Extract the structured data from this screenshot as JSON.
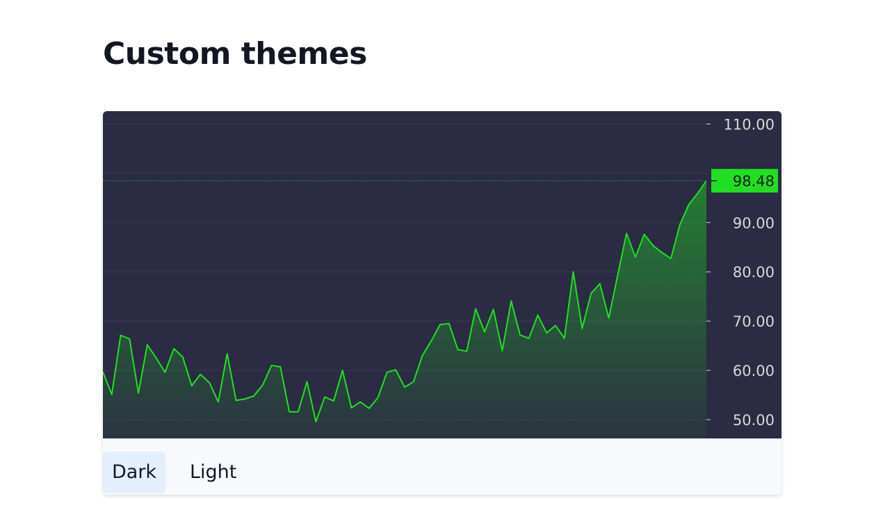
{
  "page": {
    "title": "Custom themes"
  },
  "tabs": [
    {
      "label": "Dark",
      "active": true
    },
    {
      "label": "Light",
      "active": false
    }
  ],
  "colors": {
    "background": "#2b2b43",
    "line": "#1fe020",
    "area_top": "rgba(31,224,32,0.45)",
    "area_bottom": "rgba(31,224,32,0.05)",
    "grid": "#363c4e",
    "axis_text": "#d9d9d9",
    "label_bg": "#1fe020",
    "label_text": "#131722"
  },
  "chart_data": {
    "type": "area",
    "ylim": [
      46.2,
      112.6
    ],
    "yticks": [
      "110.00",
      "90.00",
      "80.00",
      "70.00",
      "60.00",
      "50.00"
    ],
    "last_value_label": "98.48",
    "grid": true,
    "values": [
      59.7,
      55.1,
      67.1,
      66.4,
      55.4,
      65.2,
      62.5,
      59.6,
      64.4,
      62.7,
      56.9,
      59.2,
      57.5,
      53.6,
      63.4,
      53.9,
      54.2,
      54.8,
      57.0,
      61.0,
      60.7,
      51.6,
      51.6,
      57.7,
      49.6,
      54.6,
      53.8,
      60.0,
      52.4,
      53.6,
      52.3,
      54.5,
      59.6,
      60.1,
      56.6,
      57.7,
      63.0,
      66.0,
      69.3,
      69.5,
      64.2,
      63.9,
      72.5,
      67.8,
      72.4,
      64.0,
      74.1,
      67.2,
      66.5,
      71.2,
      67.6,
      69.1,
      66.5,
      80.0,
      68.5,
      75.6,
      77.6,
      70.6,
      79.3,
      87.8,
      83.0,
      87.6,
      85.3,
      83.9,
      82.7,
      89.5,
      93.6,
      95.9,
      98.48
    ]
  }
}
